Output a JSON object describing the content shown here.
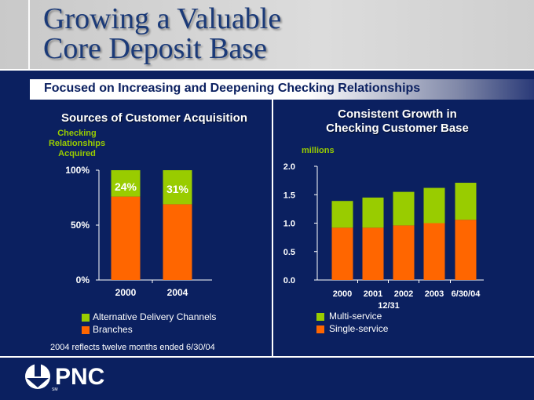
{
  "slide": {
    "title_line1": "Growing a Valuable",
    "title_line2": "Core Deposit Base",
    "subtitle": "Focused on Increasing and Deepening Checking Relationships",
    "footnote": "2004 reflects twelve months ended 6/30/04",
    "logo_text": "PNC",
    "logo_mark": "SM"
  },
  "colors": {
    "green": "#99cc00",
    "orange": "#ff6600",
    "navy": "#0b2060"
  },
  "left_chart": {
    "heading": "Sources of Customer Acquisition",
    "axis_caption": [
      "Checking",
      "Relationships",
      "Acquired"
    ]
  },
  "right_chart": {
    "heading_line1": "Consistent Growth in",
    "heading_line2": "Checking Customer Base",
    "unit_label": "millions",
    "x_sublabel": "12/31"
  },
  "chart_data": [
    {
      "type": "bar",
      "stacked": true,
      "title": "Sources of Customer Acquisition",
      "ylabel": "Checking Relationships Acquired",
      "categories": [
        "2000",
        "2004"
      ],
      "ylim": [
        0,
        100
      ],
      "yticks": [
        "0%",
        "50%",
        "100%"
      ],
      "series": [
        {
          "name": "Branches",
          "color": "#ff6600",
          "values": [
            76,
            69
          ]
        },
        {
          "name": "Alternative Delivery Channels",
          "color": "#99cc00",
          "values": [
            24,
            31
          ]
        }
      ],
      "data_labels": [
        "24%",
        "31%"
      ],
      "legend": [
        "Alternative Delivery Channels",
        "Branches"
      ]
    },
    {
      "type": "bar",
      "stacked": true,
      "title": "Consistent Growth in Checking Customer Base",
      "ylabel": "millions",
      "xlabel": "12/31",
      "categories": [
        "2000",
        "2001",
        "2002",
        "2003",
        "6/30/04"
      ],
      "ylim": [
        0,
        2.0
      ],
      "yticks": [
        "0.0",
        "0.5",
        "1.0",
        "1.5",
        "2.0"
      ],
      "series": [
        {
          "name": "Single-service",
          "color": "#ff6600",
          "values": [
            0.92,
            0.92,
            0.96,
            1.0,
            1.06
          ]
        },
        {
          "name": "Multi-service",
          "color": "#99cc00",
          "values": [
            0.47,
            0.53,
            0.59,
            0.62,
            0.65
          ]
        }
      ],
      "legend": [
        "Multi-service",
        "Single-service"
      ]
    }
  ]
}
